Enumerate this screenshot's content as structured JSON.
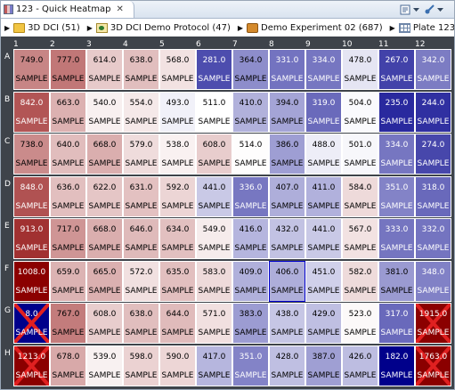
{
  "tab": {
    "title": "123 - Quick Heatmap",
    "close_glyph": "✕"
  },
  "breadcrumb": [
    {
      "label": "3D DCI (51)",
      "icon": "folder-icon"
    },
    {
      "label": "3D DCI Demo Protocol (47)",
      "icon": "protocol-icon"
    },
    {
      "label": "Demo Experiment 02 (687)",
      "icon": "experiment-icon"
    },
    {
      "label": "Plate 123 (38959)",
      "icon": "plate-icon"
    }
  ],
  "columns": [
    "1",
    "2",
    "3",
    "4",
    "5",
    "6",
    "7",
    "8",
    "9",
    "10",
    "11",
    "12"
  ],
  "rows": [
    "A",
    "B",
    "C",
    "D",
    "E",
    "F",
    "G",
    "H"
  ],
  "well_label": "SAMPLE",
  "colors": {
    "high": "#8b0000",
    "mid": "#ffffff",
    "low": "#00008b",
    "selected_border": "#0000cc",
    "background": "#3e434a"
  },
  "wells": [
    [
      "749.0",
      "777.0",
      "614.0",
      "638.0",
      "568.0",
      "281.0",
      "364.0",
      "331.0",
      "334.0",
      "478.0",
      "267.0",
      "342.0"
    ],
    [
      "842.0",
      "663.0",
      "540.0",
      "554.0",
      "493.0",
      "511.0",
      "410.0",
      "394.0",
      "319.0",
      "504.0",
      "235.0",
      "244.0"
    ],
    [
      "738.0",
      "640.0",
      "668.0",
      "579.0",
      "538.0",
      "608.0",
      "514.0",
      "386.0",
      "488.0",
      "501.0",
      "334.0",
      "274.0"
    ],
    [
      "848.0",
      "636.0",
      "622.0",
      "631.0",
      "592.0",
      "441.0",
      "336.0",
      "407.0",
      "411.0",
      "584.0",
      "351.0",
      "318.0"
    ],
    [
      "913.0",
      "717.0",
      "668.0",
      "646.0",
      "634.0",
      "549.0",
      "416.0",
      "432.0",
      "441.0",
      "567.0",
      "333.0",
      "332.0"
    ],
    [
      "1008.0",
      "659.0",
      "665.0",
      "572.0",
      "635.0",
      "583.0",
      "409.0",
      "406.0",
      "451.0",
      "582.0",
      "381.0",
      "348.0"
    ],
    [
      "8.0",
      "767.0",
      "608.0",
      "638.0",
      "644.0",
      "571.0",
      "383.0",
      "438.0",
      "429.0",
      "523.0",
      "317.0",
      "1915.0"
    ],
    [
      "1213.0",
      "678.0",
      "539.0",
      "598.0",
      "590.0",
      "417.0",
      "351.0",
      "428.0",
      "387.0",
      "426.0",
      "182.0",
      "1763.0"
    ]
  ],
  "rejected_wells": [
    "G1",
    "G12",
    "H1",
    "H12"
  ],
  "selected_well": "F8",
  "scale": {
    "min": 182.0,
    "mid": 511.0,
    "max": 1008.0
  }
}
